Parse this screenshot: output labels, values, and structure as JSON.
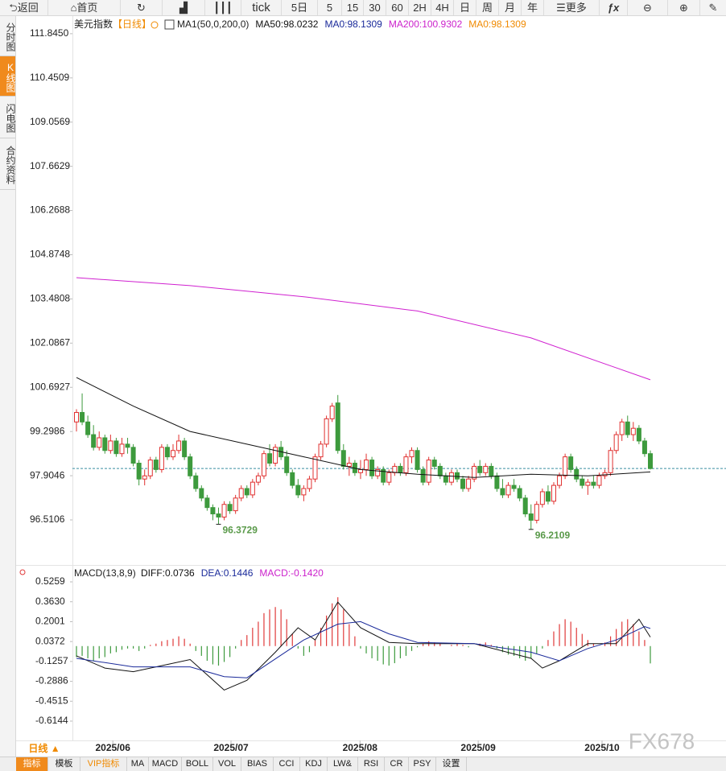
{
  "ui": {
    "toolbar": [
      "返回",
      "首页",
      "tick",
      "5日",
      "5",
      "15",
      "30",
      "60",
      "2H",
      "4H",
      "日",
      "周",
      "月",
      "年",
      "更多"
    ],
    "side_tabs": [
      "分时图",
      "K线图",
      "闪电图",
      "合约资料"
    ],
    "period_button": "日线 ▲",
    "footer_tabs": [
      "指标",
      "模板",
      "VIP指标",
      "MA",
      "MACD",
      "BOLL",
      "VOL",
      "BIAS",
      "CCI",
      "KDJ",
      "LW&",
      "RSI",
      "CR",
      "PSY",
      "设置"
    ],
    "watermark": "FX678"
  },
  "chart_data": {
    "type": "candlestick",
    "title": "美元指数",
    "period": "【日线】",
    "legend": [
      {
        "text": "MA1(50,0,200,0)",
        "color": "#222222"
      },
      {
        "text": "MA50:98.0232",
        "color": "#111111"
      },
      {
        "text": "MA0:98.1309",
        "color": "#1a2a9a"
      },
      {
        "text": "MA200:100.9302",
        "color": "#cc22cc"
      },
      {
        "text": "MA0:98.1309",
        "color": "#f08a00"
      }
    ],
    "up_color": "#e0302f",
    "down_color": "#3d9a3d",
    "ylim": [
      95.14,
      112.35
    ],
    "yticks": [
      {
        "value": 111.845,
        "label": "111.8450"
      },
      110.4509,
      109.0569,
      107.6629,
      106.2688,
      104.8748,
      103.4808,
      102.0867,
      100.6927,
      99.2986,
      97.9046,
      96.5106
    ],
    "xticks": [
      {
        "value": 6.4,
        "label": "2025/06"
      },
      {
        "value": 27.2,
        "label": "2025/07"
      },
      {
        "value": 49.9,
        "label": "2025/08"
      },
      {
        "value": 70.7,
        "label": "2025/09"
      },
      {
        "value": 92.5,
        "label": "2025/10"
      }
    ],
    "xlim": [
      0,
      101
    ],
    "candles": [
      [
        99.6,
        100.0,
        99.3,
        99.9
      ],
      [
        99.9,
        100.5,
        99.5,
        99.6
      ],
      [
        99.6,
        99.8,
        99.1,
        99.2
      ],
      [
        99.2,
        99.5,
        98.7,
        98.8
      ],
      [
        98.8,
        99.3,
        98.7,
        99.1
      ],
      [
        99.1,
        99.2,
        98.6,
        98.7
      ],
      [
        98.7,
        99.2,
        98.6,
        99.0
      ],
      [
        99.0,
        99.1,
        98.5,
        98.6
      ],
      [
        98.6,
        99.1,
        98.5,
        98.9
      ],
      [
        98.9,
        99.1,
        98.6,
        98.8
      ],
      [
        98.8,
        98.9,
        98.2,
        98.3
      ],
      [
        98.3,
        98.4,
        97.6,
        97.8
      ],
      [
        97.8,
        98.1,
        97.6,
        97.9
      ],
      [
        97.9,
        98.5,
        97.8,
        98.4
      ],
      [
        98.4,
        98.5,
        98.0,
        98.1
      ],
      [
        98.1,
        98.9,
        98.0,
        98.8
      ],
      [
        98.8,
        98.9,
        98.4,
        98.5
      ],
      [
        98.5,
        98.9,
        98.4,
        98.7
      ],
      [
        98.7,
        99.2,
        98.6,
        99.0
      ],
      [
        99.0,
        99.1,
        98.4,
        98.5
      ],
      [
        98.5,
        98.6,
        97.8,
        97.9
      ],
      [
        97.9,
        98.0,
        97.4,
        97.5
      ],
      [
        97.5,
        97.6,
        97.1,
        97.2
      ],
      [
        97.2,
        97.3,
        96.8,
        96.9
      ],
      [
        96.9,
        97.0,
        96.5,
        96.7
      ],
      [
        96.7,
        96.9,
        96.3729,
        96.6
      ],
      [
        96.6,
        97.1,
        96.5,
        97.0
      ],
      [
        97.0,
        97.1,
        96.7,
        96.8
      ],
      [
        96.8,
        97.3,
        96.7,
        97.2
      ],
      [
        97.2,
        97.6,
        97.1,
        97.5
      ],
      [
        97.5,
        97.6,
        97.2,
        97.3
      ],
      [
        97.3,
        97.8,
        97.2,
        97.7
      ],
      [
        97.7,
        98.0,
        97.6,
        97.9
      ],
      [
        97.9,
        98.7,
        97.8,
        98.6
      ],
      [
        98.6,
        98.9,
        98.2,
        98.3
      ],
      [
        98.3,
        98.9,
        98.2,
        98.8
      ],
      [
        98.8,
        99.0,
        98.4,
        98.5
      ],
      [
        98.5,
        98.7,
        97.9,
        98.0
      ],
      [
        98.0,
        98.1,
        97.5,
        97.6
      ],
      [
        97.6,
        97.8,
        97.2,
        97.3
      ],
      [
        97.3,
        97.6,
        97.1,
        97.5
      ],
      [
        97.5,
        97.9,
        97.4,
        97.8
      ],
      [
        97.8,
        98.6,
        97.7,
        98.5
      ],
      [
        98.5,
        99.0,
        98.4,
        98.9
      ],
      [
        98.9,
        99.8,
        98.8,
        99.7
      ],
      [
        99.7,
        100.2,
        99.6,
        100.1
      ],
      [
        100.2,
        100.45,
        98.6,
        98.7
      ],
      [
        98.7,
        98.9,
        98.1,
        98.2
      ],
      [
        98.2,
        98.5,
        97.9,
        98.3
      ],
      [
        98.3,
        98.4,
        97.9,
        98.0
      ],
      [
        98.0,
        98.4,
        97.8,
        98.1
      ],
      [
        98.1,
        98.6,
        97.9,
        98.4
      ],
      [
        98.4,
        98.5,
        97.8,
        97.9
      ],
      [
        97.9,
        98.2,
        97.8,
        98.1
      ],
      [
        98.1,
        98.2,
        97.6,
        97.7
      ],
      [
        97.7,
        98.1,
        97.6,
        98.0
      ],
      [
        98.0,
        98.3,
        97.9,
        98.2
      ],
      [
        98.2,
        98.3,
        97.9,
        98.0
      ],
      [
        98.0,
        98.6,
        97.9,
        98.5
      ],
      [
        98.5,
        98.8,
        98.3,
        98.7
      ],
      [
        98.7,
        98.8,
        98.0,
        98.1
      ],
      [
        98.1,
        98.2,
        97.6,
        97.7
      ],
      [
        97.7,
        98.5,
        97.6,
        98.4
      ],
      [
        98.4,
        98.5,
        98.1,
        98.2
      ],
      [
        98.2,
        98.3,
        97.8,
        97.9
      ],
      [
        97.9,
        98.0,
        97.6,
        97.7
      ],
      [
        97.7,
        98.1,
        97.6,
        98.0
      ],
      [
        98.0,
        98.1,
        97.7,
        97.8
      ],
      [
        97.8,
        97.9,
        97.4,
        97.5
      ],
      [
        97.5,
        97.9,
        97.4,
        97.8
      ],
      [
        97.8,
        98.3,
        97.7,
        98.2
      ],
      [
        98.2,
        98.4,
        97.9,
        98.0
      ],
      [
        98.0,
        98.3,
        97.9,
        98.2
      ],
      [
        98.2,
        98.3,
        97.8,
        97.9
      ],
      [
        97.9,
        98.0,
        97.4,
        97.5
      ],
      [
        97.5,
        97.8,
        97.2,
        97.3
      ],
      [
        97.3,
        97.7,
        97.2,
        97.6
      ],
      [
        97.6,
        97.8,
        97.4,
        97.5
      ],
      [
        97.5,
        97.6,
        97.1,
        97.2
      ],
      [
        97.2,
        97.3,
        96.6,
        96.7
      ],
      [
        96.7,
        97.0,
        96.2109,
        96.5
      ],
      [
        96.5,
        97.1,
        96.4,
        97.0
      ],
      [
        97.0,
        97.5,
        96.9,
        97.4
      ],
      [
        97.4,
        97.6,
        97.0,
        97.1
      ],
      [
        97.1,
        97.7,
        97.0,
        97.6
      ],
      [
        97.6,
        98.0,
        97.5,
        97.9
      ],
      [
        97.9,
        98.6,
        97.8,
        98.5
      ],
      [
        98.5,
        98.6,
        98.0,
        98.1
      ],
      [
        98.1,
        98.2,
        97.7,
        97.8
      ],
      [
        97.8,
        97.9,
        97.5,
        97.6
      ],
      [
        97.6,
        97.8,
        97.3,
        97.7
      ],
      [
        97.7,
        97.9,
        97.5,
        97.6
      ],
      [
        97.6,
        98.0,
        97.5,
        97.9
      ],
      [
        97.9,
        98.1,
        97.8,
        98.0
      ],
      [
        98.0,
        98.8,
        97.9,
        98.7
      ],
      [
        98.7,
        99.3,
        98.6,
        99.2
      ],
      [
        99.2,
        99.7,
        99.0,
        99.6
      ],
      [
        99.6,
        99.8,
        99.1,
        99.2
      ],
      [
        99.2,
        99.6,
        99.0,
        99.4
      ],
      [
        99.4,
        99.5,
        98.9,
        99.0
      ],
      [
        99.0,
        99.1,
        98.5,
        98.6
      ],
      [
        98.6,
        98.7,
        98.1,
        98.1309
      ]
    ],
    "lines": [
      {
        "color": "#111111",
        "x": [
          0,
          10,
          20,
          30,
          40,
          50,
          60,
          70,
          80,
          90,
          101
        ],
        "values": [
          101.0,
          100.1,
          99.3,
          98.9,
          98.5,
          98.1,
          97.95,
          97.85,
          97.95,
          97.9,
          98.0232
        ]
      },
      {
        "color": "#d020d0",
        "x": [
          0,
          20,
          40,
          60,
          80,
          101
        ],
        "values": [
          104.15,
          103.9,
          103.55,
          103.1,
          102.25,
          100.9302
        ]
      }
    ],
    "annotations": [
      {
        "x": 25,
        "y": 96.3729
      },
      {
        "x": 80,
        "y": 96.2109
      }
    ],
    "macd": {
      "title": "MACD(13,8,9)",
      "legend": [
        {
          "text": "DIFF:0.0736",
          "color": "#111111"
        },
        {
          "text": "DEA:0.1446",
          "color": "#1a2a9a"
        },
        {
          "text": "MACD:-0.1420",
          "color": "#cc22cc"
        }
      ],
      "ylim": [
        -0.7397,
        0.6446
      ],
      "yticks": [
        0.5259,
        {
          "value": 0.363,
          "label": "0.3630"
        },
        0.2001,
        0.0372,
        -0.1257,
        -0.2886,
        -0.4515,
        -0.6144
      ],
      "histogram": [
        -0.09,
        -0.08,
        -0.1,
        -0.12,
        -0.1,
        -0.09,
        -0.06,
        -0.05,
        -0.03,
        -0.02,
        -0.02,
        -0.04,
        -0.02,
        0.01,
        0.02,
        0.04,
        0.05,
        0.06,
        0.08,
        0.06,
        0.02,
        -0.04,
        -0.08,
        -0.12,
        -0.15,
        -0.16,
        -0.13,
        -0.09,
        -0.02,
        0.05,
        0.09,
        0.15,
        0.2,
        0.27,
        0.3,
        0.32,
        0.3,
        0.22,
        0.1,
        -0.02,
        -0.08,
        -0.05,
        0.05,
        0.15,
        0.25,
        0.35,
        0.4,
        0.3,
        0.18,
        0.08,
        -0.02,
        -0.06,
        -0.1,
        -0.12,
        -0.15,
        -0.16,
        -0.14,
        -0.1,
        -0.08,
        -0.04,
        -0.01,
        0.02,
        0.04,
        0.03,
        0.02,
        0.0,
        0.01,
        0.02,
        0.01,
        -0.01,
        0.0,
        0.02,
        0.03,
        0.01,
        -0.02,
        -0.05,
        -0.07,
        -0.08,
        -0.1,
        -0.12,
        -0.1,
        -0.06,
        -0.02,
        0.05,
        0.12,
        0.18,
        0.22,
        0.2,
        0.15,
        0.1,
        0.05,
        0.02,
        0.0,
        0.03,
        0.08,
        0.14,
        0.2,
        0.22,
        0.18,
        0.12,
        0.05,
        -0.142
      ],
      "lines": [
        {
          "color": "#111111",
          "x": [
            0,
            5,
            10,
            15,
            20,
            26,
            30,
            35,
            39,
            42,
            46,
            50,
            55,
            60,
            70,
            80,
            82,
            85,
            90,
            95,
            99,
            101
          ],
          "values": [
            -0.08,
            -0.18,
            -0.21,
            -0.16,
            -0.11,
            -0.36,
            -0.28,
            -0.05,
            0.15,
            0.05,
            0.36,
            0.15,
            0.03,
            0.02,
            0.02,
            -0.1,
            -0.18,
            -0.12,
            0.02,
            0.02,
            0.22,
            0.0736
          ]
        },
        {
          "color": "#1a2a9a",
          "x": [
            0,
            10,
            20,
            26,
            30,
            40,
            46,
            50,
            55,
            60,
            70,
            80,
            85,
            90,
            95,
            100,
            101
          ],
          "values": [
            -0.1,
            -0.17,
            -0.17,
            -0.25,
            -0.26,
            0.05,
            0.18,
            0.2,
            0.1,
            0.03,
            0.02,
            -0.05,
            -0.12,
            -0.02,
            0.05,
            0.16,
            0.1446
          ]
        }
      ]
    }
  }
}
